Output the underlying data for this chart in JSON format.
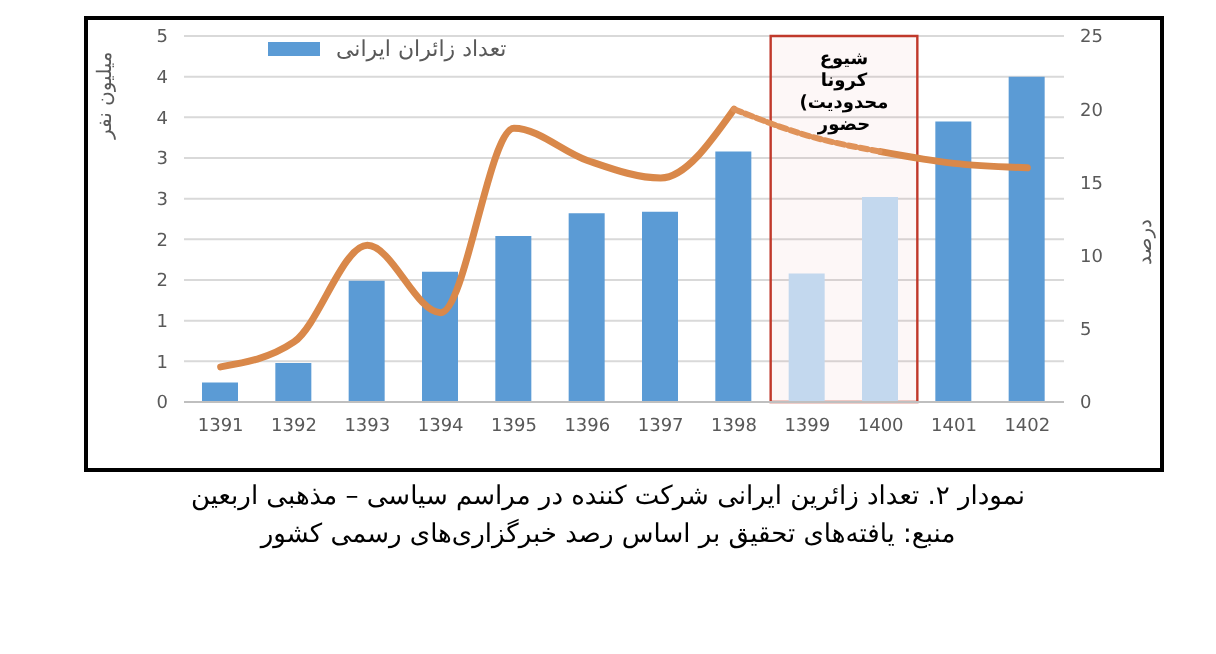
{
  "chart_data": {
    "type": "bar",
    "title": "نمودار ۲. تعداد زائرین ایرانی شرکت کننده در مراسم سیاسی – مذهبی اربعین",
    "ylabel": "میلیون نفر",
    "y2label": "درصد",
    "categories": [
      "1391",
      "1392",
      "1393",
      "1394",
      "1395",
      "1396",
      "1397",
      "1398",
      "1399",
      "1400",
      "1401",
      "1402"
    ],
    "series": [
      {
        "name": "تعداد زائران ایرانی",
        "color": "#5b9bd5",
        "colors": [
          "#5b9bd5",
          "#5b9bd5",
          "#5b9bd5",
          "#5b9bd5",
          "#5b9bd5",
          "#5b9bd5",
          "#5b9bd5",
          "#5b9bd5",
          "#c3d8ee",
          "#c3d8ee",
          "#5b9bd5",
          "#5b9bd5"
        ],
        "values": [
          0.24,
          0.48,
          1.49,
          1.6,
          2.04,
          2.32,
          2.34,
          3.08,
          1.58,
          2.52,
          3.45,
          4.0
        ]
      },
      {
        "type": "line",
        "axis": "y2",
        "color": "#d9884a",
        "line_style": "solid",
        "values": [
          2.4,
          4.1,
          10.7,
          6.1,
          18.7,
          16.5,
          15.3,
          20.0,
          null,
          17.1,
          16.3,
          16.0
        ]
      },
      {
        "type": "line",
        "axis": "y2",
        "color": "#e0935a",
        "line_style": "dotted",
        "values": [
          null,
          null,
          null,
          null,
          null,
          null,
          null,
          20.0,
          18.2,
          17.1,
          null,
          null
        ]
      }
    ],
    "ylim": [
      0,
      4.5
    ],
    "yticks": [
      0,
      {
        "value": 0.5,
        "label": "1"
      },
      1,
      {
        "value": 1.5,
        "label": "2"
      },
      2,
      {
        "value": 2.5,
        "label": "3"
      },
      3,
      {
        "value": 3.5,
        "label": "4"
      },
      4,
      {
        "value": 4.5,
        "label": "5"
      }
    ],
    "y2lim": [
      0,
      25
    ],
    "y2ticks": [
      0,
      5,
      10,
      15,
      20,
      25
    ],
    "grid": "y",
    "legend": "top left",
    "marker": "none",
    "bands": [
      {
        "axis": "x",
        "from": "1399",
        "to": "1400",
        "label": "شیوع کرونا (محدودیت حضور",
        "color": "#c0392b"
      }
    ],
    "annotations": [
      "منبع: یافته‌های تحقیق بر اساس رصد خبرگزاری‌های رسمی کشور"
    ]
  }
}
